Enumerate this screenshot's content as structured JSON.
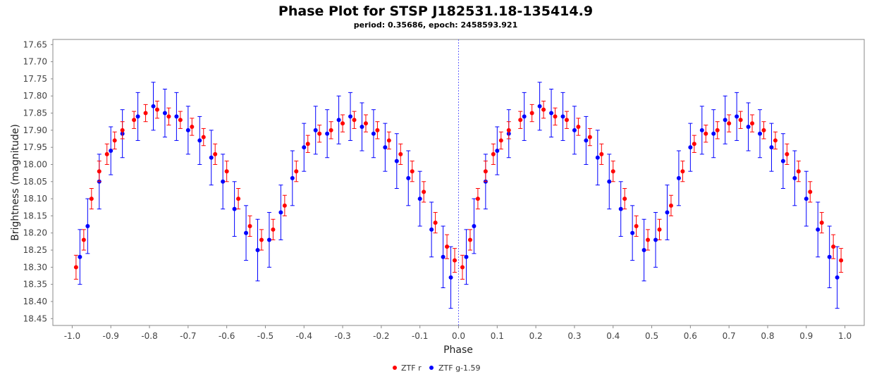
{
  "chart_data": {
    "type": "scatter",
    "title": "Phase Plot for STSP J182531.18-135414.9",
    "subtitle": "period: 0.35686, epoch: 2458593.921",
    "xlabel": "Phase",
    "ylabel": "Brightness (magnitude)",
    "xlim": [
      -1.05,
      1.05
    ],
    "ylim": [
      17.635,
      18.47
    ],
    "y_inverted": true,
    "x_ticks": [
      -1.0,
      -0.9,
      -0.8,
      -0.7,
      -0.6,
      -0.5,
      -0.4,
      -0.3,
      -0.2,
      -0.1,
      0.0,
      0.1,
      0.2,
      0.3,
      0.4,
      0.5,
      0.6,
      0.7,
      0.8,
      0.9,
      1.0
    ],
    "x_tick_labels": [
      "-1.0",
      "-0.9",
      "-0.8",
      "-0.7",
      "-0.6",
      "-0.5",
      "-0.4",
      "-0.3",
      "-0.2",
      "-0.1",
      "0.0",
      "0.1",
      "0.2",
      "0.3",
      "0.4",
      "0.5",
      "0.6",
      "0.7",
      "0.8",
      "0.9",
      "1.0"
    ],
    "y_ticks": [
      17.65,
      17.7,
      17.75,
      17.8,
      17.85,
      17.9,
      17.95,
      18.0,
      18.05,
      18.1,
      18.15,
      18.2,
      18.25,
      18.3,
      18.35,
      18.4,
      18.45
    ],
    "y_tick_labels": [
      "17.65",
      "17.70",
      "17.75",
      "17.80",
      "17.85",
      "17.90",
      "17.95",
      "18.00",
      "18.05",
      "18.10",
      "18.15",
      "18.20",
      "18.25",
      "18.30",
      "18.35",
      "18.40",
      "18.45"
    ],
    "reference_line_x": 0.0,
    "grid": false,
    "legend_position": "bottom-center",
    "series": [
      {
        "name": "ZTF r",
        "color": "#ff0000",
        "points": [
          {
            "x": -0.99,
            "y": 18.3,
            "err": 0.035
          },
          {
            "x": -0.97,
            "y": 18.22,
            "err": 0.03
          },
          {
            "x": -0.95,
            "y": 18.1,
            "err": 0.03
          },
          {
            "x": -0.93,
            "y": 18.02,
            "err": 0.03
          },
          {
            "x": -0.91,
            "y": 17.97,
            "err": 0.03
          },
          {
            "x": -0.89,
            "y": 17.93,
            "err": 0.025
          },
          {
            "x": -0.87,
            "y": 17.9,
            "err": 0.025
          },
          {
            "x": -0.84,
            "y": 17.87,
            "err": 0.025
          },
          {
            "x": -0.81,
            "y": 17.85,
            "err": 0.025
          },
          {
            "x": -0.78,
            "y": 17.84,
            "err": 0.025
          },
          {
            "x": -0.75,
            "y": 17.86,
            "err": 0.025
          },
          {
            "x": -0.72,
            "y": 17.87,
            "err": 0.025
          },
          {
            "x": -0.69,
            "y": 17.89,
            "err": 0.025
          },
          {
            "x": -0.66,
            "y": 17.92,
            "err": 0.025
          },
          {
            "x": -0.63,
            "y": 17.97,
            "err": 0.03
          },
          {
            "x": -0.6,
            "y": 18.02,
            "err": 0.03
          },
          {
            "x": -0.57,
            "y": 18.1,
            "err": 0.03
          },
          {
            "x": -0.54,
            "y": 18.18,
            "err": 0.03
          },
          {
            "x": -0.51,
            "y": 18.22,
            "err": 0.03
          },
          {
            "x": -0.48,
            "y": 18.19,
            "err": 0.03
          },
          {
            "x": -0.45,
            "y": 18.12,
            "err": 0.03
          },
          {
            "x": -0.42,
            "y": 18.02,
            "err": 0.03
          },
          {
            "x": -0.39,
            "y": 17.94,
            "err": 0.025
          },
          {
            "x": -0.36,
            "y": 17.91,
            "err": 0.025
          },
          {
            "x": -0.33,
            "y": 17.9,
            "err": 0.025
          },
          {
            "x": -0.3,
            "y": 17.88,
            "err": 0.025
          },
          {
            "x": -0.27,
            "y": 17.87,
            "err": 0.025
          },
          {
            "x": -0.24,
            "y": 17.88,
            "err": 0.025
          },
          {
            "x": -0.21,
            "y": 17.9,
            "err": 0.025
          },
          {
            "x": -0.18,
            "y": 17.93,
            "err": 0.025
          },
          {
            "x": -0.15,
            "y": 17.97,
            "err": 0.03
          },
          {
            "x": -0.12,
            "y": 18.02,
            "err": 0.03
          },
          {
            "x": -0.09,
            "y": 18.08,
            "err": 0.03
          },
          {
            "x": -0.06,
            "y": 18.17,
            "err": 0.03
          },
          {
            "x": -0.03,
            "y": 18.24,
            "err": 0.035
          },
          {
            "x": -0.01,
            "y": 18.28,
            "err": 0.035
          },
          {
            "x": 0.01,
            "y": 18.3,
            "err": 0.035
          },
          {
            "x": 0.03,
            "y": 18.22,
            "err": 0.03
          },
          {
            "x": 0.05,
            "y": 18.1,
            "err": 0.03
          },
          {
            "x": 0.07,
            "y": 18.02,
            "err": 0.03
          },
          {
            "x": 0.09,
            "y": 17.97,
            "err": 0.03
          },
          {
            "x": 0.11,
            "y": 17.93,
            "err": 0.025
          },
          {
            "x": 0.13,
            "y": 17.9,
            "err": 0.025
          },
          {
            "x": 0.16,
            "y": 17.87,
            "err": 0.025
          },
          {
            "x": 0.19,
            "y": 17.85,
            "err": 0.025
          },
          {
            "x": 0.22,
            "y": 17.84,
            "err": 0.025
          },
          {
            "x": 0.25,
            "y": 17.86,
            "err": 0.025
          },
          {
            "x": 0.28,
            "y": 17.87,
            "err": 0.025
          },
          {
            "x": 0.31,
            "y": 17.89,
            "err": 0.025
          },
          {
            "x": 0.34,
            "y": 17.92,
            "err": 0.025
          },
          {
            "x": 0.37,
            "y": 17.97,
            "err": 0.03
          },
          {
            "x": 0.4,
            "y": 18.02,
            "err": 0.03
          },
          {
            "x": 0.43,
            "y": 18.1,
            "err": 0.03
          },
          {
            "x": 0.46,
            "y": 18.18,
            "err": 0.03
          },
          {
            "x": 0.49,
            "y": 18.22,
            "err": 0.03
          },
          {
            "x": 0.52,
            "y": 18.19,
            "err": 0.03
          },
          {
            "x": 0.55,
            "y": 18.12,
            "err": 0.03
          },
          {
            "x": 0.58,
            "y": 18.02,
            "err": 0.03
          },
          {
            "x": 0.61,
            "y": 17.94,
            "err": 0.025
          },
          {
            "x": 0.64,
            "y": 17.91,
            "err": 0.025
          },
          {
            "x": 0.67,
            "y": 17.9,
            "err": 0.025
          },
          {
            "x": 0.7,
            "y": 17.88,
            "err": 0.025
          },
          {
            "x": 0.73,
            "y": 17.87,
            "err": 0.025
          },
          {
            "x": 0.76,
            "y": 17.88,
            "err": 0.025
          },
          {
            "x": 0.79,
            "y": 17.9,
            "err": 0.025
          },
          {
            "x": 0.82,
            "y": 17.93,
            "err": 0.025
          },
          {
            "x": 0.85,
            "y": 17.97,
            "err": 0.03
          },
          {
            "x": 0.88,
            "y": 18.02,
            "err": 0.03
          },
          {
            "x": 0.91,
            "y": 18.08,
            "err": 0.03
          },
          {
            "x": 0.94,
            "y": 18.17,
            "err": 0.03
          },
          {
            "x": 0.97,
            "y": 18.24,
            "err": 0.035
          },
          {
            "x": 0.99,
            "y": 18.28,
            "err": 0.035
          }
        ]
      },
      {
        "name": "ZTF g-1.59",
        "color": "#0000ff",
        "points": [
          {
            "x": -0.98,
            "y": 18.27,
            "err": 0.08
          },
          {
            "x": -0.96,
            "y": 18.18,
            "err": 0.08
          },
          {
            "x": -0.93,
            "y": 18.05,
            "err": 0.08
          },
          {
            "x": -0.9,
            "y": 17.96,
            "err": 0.07
          },
          {
            "x": -0.87,
            "y": 17.91,
            "err": 0.07
          },
          {
            "x": -0.83,
            "y": 17.86,
            "err": 0.07
          },
          {
            "x": -0.79,
            "y": 17.83,
            "err": 0.07
          },
          {
            "x": -0.76,
            "y": 17.85,
            "err": 0.07
          },
          {
            "x": -0.73,
            "y": 17.86,
            "err": 0.07
          },
          {
            "x": -0.7,
            "y": 17.9,
            "err": 0.07
          },
          {
            "x": -0.67,
            "y": 17.93,
            "err": 0.07
          },
          {
            "x": -0.64,
            "y": 17.98,
            "err": 0.08
          },
          {
            "x": -0.61,
            "y": 18.05,
            "err": 0.08
          },
          {
            "x": -0.58,
            "y": 18.13,
            "err": 0.08
          },
          {
            "x": -0.55,
            "y": 18.2,
            "err": 0.08
          },
          {
            "x": -0.52,
            "y": 18.25,
            "err": 0.09
          },
          {
            "x": -0.49,
            "y": 18.22,
            "err": 0.08
          },
          {
            "x": -0.46,
            "y": 18.14,
            "err": 0.08
          },
          {
            "x": -0.43,
            "y": 18.04,
            "err": 0.08
          },
          {
            "x": -0.4,
            "y": 17.95,
            "err": 0.07
          },
          {
            "x": -0.37,
            "y": 17.9,
            "err": 0.07
          },
          {
            "x": -0.34,
            "y": 17.91,
            "err": 0.07
          },
          {
            "x": -0.31,
            "y": 17.87,
            "err": 0.07
          },
          {
            "x": -0.28,
            "y": 17.86,
            "err": 0.07
          },
          {
            "x": -0.25,
            "y": 17.89,
            "err": 0.07
          },
          {
            "x": -0.22,
            "y": 17.91,
            "err": 0.07
          },
          {
            "x": -0.19,
            "y": 17.95,
            "err": 0.07
          },
          {
            "x": -0.16,
            "y": 17.99,
            "err": 0.08
          },
          {
            "x": -0.13,
            "y": 18.04,
            "err": 0.08
          },
          {
            "x": -0.1,
            "y": 18.1,
            "err": 0.08
          },
          {
            "x": -0.07,
            "y": 18.19,
            "err": 0.08
          },
          {
            "x": -0.04,
            "y": 18.27,
            "err": 0.09
          },
          {
            "x": -0.02,
            "y": 18.33,
            "err": 0.09
          },
          {
            "x": 0.02,
            "y": 18.27,
            "err": 0.08
          },
          {
            "x": 0.04,
            "y": 18.18,
            "err": 0.08
          },
          {
            "x": 0.07,
            "y": 18.05,
            "err": 0.08
          },
          {
            "x": 0.1,
            "y": 17.96,
            "err": 0.07
          },
          {
            "x": 0.13,
            "y": 17.91,
            "err": 0.07
          },
          {
            "x": 0.17,
            "y": 17.86,
            "err": 0.07
          },
          {
            "x": 0.21,
            "y": 17.83,
            "err": 0.07
          },
          {
            "x": 0.24,
            "y": 17.85,
            "err": 0.07
          },
          {
            "x": 0.27,
            "y": 17.86,
            "err": 0.07
          },
          {
            "x": 0.3,
            "y": 17.9,
            "err": 0.07
          },
          {
            "x": 0.33,
            "y": 17.93,
            "err": 0.07
          },
          {
            "x": 0.36,
            "y": 17.98,
            "err": 0.08
          },
          {
            "x": 0.39,
            "y": 18.05,
            "err": 0.08
          },
          {
            "x": 0.42,
            "y": 18.13,
            "err": 0.08
          },
          {
            "x": 0.45,
            "y": 18.2,
            "err": 0.08
          },
          {
            "x": 0.48,
            "y": 18.25,
            "err": 0.09
          },
          {
            "x": 0.51,
            "y": 18.22,
            "err": 0.08
          },
          {
            "x": 0.54,
            "y": 18.14,
            "err": 0.08
          },
          {
            "x": 0.57,
            "y": 18.04,
            "err": 0.08
          },
          {
            "x": 0.6,
            "y": 17.95,
            "err": 0.07
          },
          {
            "x": 0.63,
            "y": 17.9,
            "err": 0.07
          },
          {
            "x": 0.66,
            "y": 17.91,
            "err": 0.07
          },
          {
            "x": 0.69,
            "y": 17.87,
            "err": 0.07
          },
          {
            "x": 0.72,
            "y": 17.86,
            "err": 0.07
          },
          {
            "x": 0.75,
            "y": 17.89,
            "err": 0.07
          },
          {
            "x": 0.78,
            "y": 17.91,
            "err": 0.07
          },
          {
            "x": 0.81,
            "y": 17.95,
            "err": 0.07
          },
          {
            "x": 0.84,
            "y": 17.99,
            "err": 0.08
          },
          {
            "x": 0.87,
            "y": 18.04,
            "err": 0.08
          },
          {
            "x": 0.9,
            "y": 18.1,
            "err": 0.08
          },
          {
            "x": 0.93,
            "y": 18.19,
            "err": 0.08
          },
          {
            "x": 0.96,
            "y": 18.27,
            "err": 0.09
          },
          {
            "x": 0.98,
            "y": 18.33,
            "err": 0.09
          }
        ]
      }
    ]
  }
}
